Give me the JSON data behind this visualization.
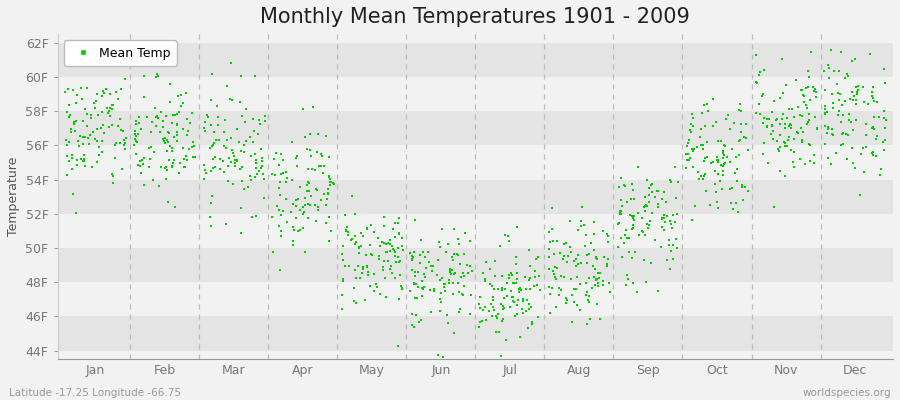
{
  "title": "Monthly Mean Temperatures 1901 - 2009",
  "ylabel": "Temperature",
  "xlabel_labels": [
    "Jan",
    "Feb",
    "Mar",
    "Apr",
    "May",
    "Jun",
    "Jul",
    "Aug",
    "Sep",
    "Oct",
    "Nov",
    "Dec"
  ],
  "ytick_labels": [
    "44F",
    "46F",
    "48F",
    "50F",
    "52F",
    "54F",
    "56F",
    "58F",
    "60F",
    "62F"
  ],
  "ytick_values": [
    44,
    46,
    48,
    50,
    52,
    54,
    56,
    58,
    60,
    62
  ],
  "ylim": [
    43.5,
    62.5
  ],
  "dot_color": "#00cc00",
  "dot_size": 4,
  "background_color": "#f2f2f2",
  "plot_bg_color": "#f2f2f2",
  "band_color_dark": "#e4e4e4",
  "band_color_light": "#f2f2f2",
  "dashed_line_color": "#bbbbbb",
  "legend_label": "Mean Temp",
  "footer_left": "Latitude -17.25 Longitude -66.75",
  "footer_right": "worldspecies.org",
  "title_fontsize": 15,
  "label_fontsize": 9,
  "tick_fontsize": 9,
  "monthly_mean_temps": [
    56.8,
    56.2,
    55.8,
    53.5,
    49.5,
    48.0,
    47.5,
    48.5,
    51.5,
    55.5,
    57.5,
    57.8
  ],
  "monthly_std": [
    1.8,
    1.8,
    1.8,
    1.8,
    1.5,
    1.5,
    1.5,
    1.5,
    1.8,
    1.8,
    1.8,
    1.8
  ],
  "num_years": 109,
  "seed": 42
}
